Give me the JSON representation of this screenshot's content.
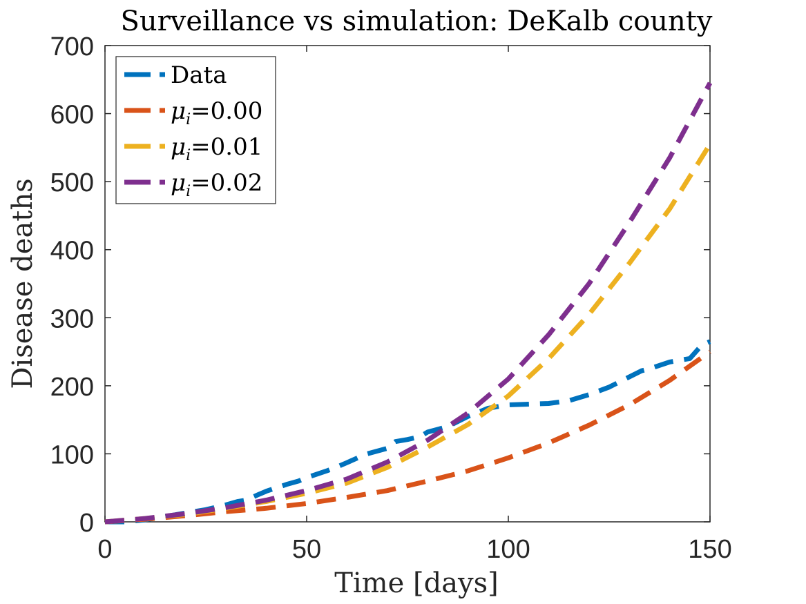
{
  "chart_data": {
    "type": "line",
    "title": "Surveillance vs simulation: DeKalb county",
    "xlabel": "Time [days]",
    "ylabel": "Disease deaths",
    "xlim": [
      0,
      150
    ],
    "ylim": [
      0,
      700
    ],
    "xticks": [
      0,
      50,
      100,
      150
    ],
    "xtick_labels": [
      "0",
      "50",
      "100",
      "150"
    ],
    "yticks": [
      0,
      100,
      200,
      300,
      400,
      500,
      600,
      700
    ],
    "ytick_labels": [
      "0",
      "100",
      "200",
      "300",
      "400",
      "500",
      "600",
      "700"
    ],
    "grid": false,
    "legend_position": "top-left",
    "series": [
      {
        "name": "Data",
        "legend_symbol": "",
        "legend_value": "Data",
        "color": "#0072BD",
        "x": [
          0,
          5,
          10,
          15,
          20,
          25,
          30,
          33,
          35,
          38,
          40,
          45,
          48,
          50,
          55,
          58,
          60,
          63,
          65,
          70,
          72,
          75,
          78,
          80,
          85,
          90,
          95,
          98,
          100,
          105,
          110,
          115,
          120,
          125,
          130,
          133,
          135,
          140,
          145,
          148,
          150
        ],
        "y": [
          0,
          0,
          3,
          8,
          13,
          18,
          25,
          30,
          32,
          40,
          45,
          55,
          60,
          65,
          75,
          82,
          87,
          95,
          100,
          108,
          118,
          121,
          125,
          132,
          140,
          155,
          167,
          170,
          172,
          173,
          174,
          178,
          187,
          198,
          213,
          222,
          225,
          235,
          240,
          260,
          265
        ]
      },
      {
        "name": "μi=0.00",
        "legend_symbol": "μ",
        "legend_sub": "i",
        "legend_value": "=0.00",
        "color": "#D95319",
        "x": [
          0,
          10,
          20,
          30,
          40,
          50,
          60,
          70,
          80,
          90,
          100,
          110,
          120,
          130,
          140,
          150
        ],
        "y": [
          0,
          4,
          9,
          15,
          20,
          27,
          36,
          46,
          60,
          75,
          94,
          116,
          142,
          172,
          208,
          250
        ]
      },
      {
        "name": "μi=0.01",
        "legend_symbol": "μ",
        "legend_sub": "i",
        "legend_value": "=0.01",
        "color": "#EDB120",
        "x": [
          0,
          10,
          20,
          30,
          40,
          50,
          60,
          70,
          80,
          90,
          100,
          110,
          120,
          130,
          140,
          150
        ],
        "y": [
          0,
          5,
          11,
          20,
          30,
          42,
          57,
          80,
          110,
          143,
          185,
          240,
          305,
          380,
          460,
          555
        ]
      },
      {
        "name": "μi=0.02",
        "legend_symbol": "μ",
        "legend_sub": "i",
        "legend_value": "=0.02",
        "color": "#7E2F8E",
        "x": [
          0,
          10,
          20,
          30,
          40,
          50,
          60,
          70,
          80,
          90,
          100,
          110,
          120,
          130,
          140,
          150
        ],
        "y": [
          0,
          5,
          12,
          21,
          32,
          46,
          63,
          88,
          120,
          160,
          210,
          275,
          350,
          440,
          535,
          645
        ]
      }
    ]
  }
}
